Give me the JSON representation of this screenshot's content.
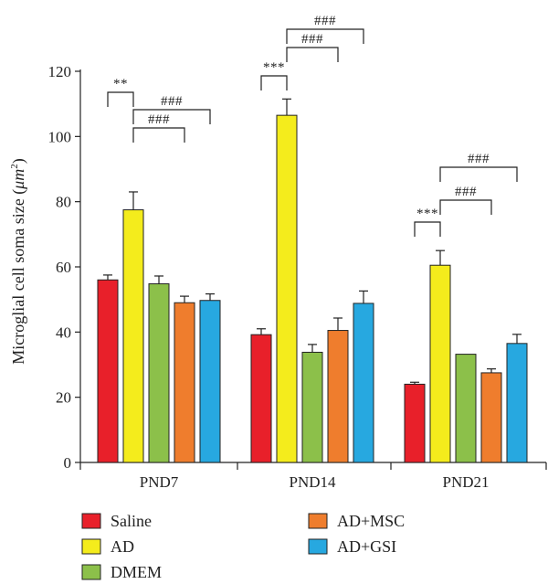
{
  "chart_data": {
    "type": "bar",
    "title": "",
    "xlabel": "",
    "ylabel": "Microglial cell soma size (",
    "ylabel_unit_mu": "μm",
    "ylabel_unit_exp": "2",
    "ylabel_close": ")",
    "ylim": [
      0,
      120
    ],
    "yticks": [
      "0",
      "20",
      "40",
      "60",
      "80",
      "100",
      "120"
    ],
    "categories": [
      "PND7",
      "PND14",
      "PND21"
    ],
    "series": [
      {
        "name": "Saline",
        "color": "#e8202a",
        "values": [
          56,
          39.2,
          24
        ],
        "errors": [
          1.5,
          1.8,
          0.6
        ]
      },
      {
        "name": "AD",
        "color": "#f4ec1c",
        "values": [
          77.5,
          106.5,
          60.5
        ],
        "errors": [
          5.5,
          5,
          4.5
        ]
      },
      {
        "name": "DMEM",
        "color": "#8cc04a",
        "values": [
          54.8,
          33.8,
          33.2
        ],
        "errors": [
          2.4,
          2.4,
          0
        ]
      },
      {
        "name": "AD+MSC",
        "color": "#ef7d2d",
        "values": [
          49,
          40.5,
          27.5
        ],
        "errors": [
          2,
          3.8,
          1.2
        ]
      },
      {
        "name": "AD+GSI",
        "color": "#27a8e0",
        "values": [
          49.7,
          48.8,
          36.5
        ],
        "errors": [
          2,
          3.8,
          2.8
        ]
      }
    ],
    "significance": [
      {
        "category": "PND7",
        "from": "Saline",
        "to": "AD",
        "label": "**"
      },
      {
        "category": "PND7",
        "from": "AD",
        "to": "AD+MSC",
        "label": "###"
      },
      {
        "category": "PND7",
        "from": "AD",
        "to": "AD+GSI",
        "label": "###"
      },
      {
        "category": "PND14",
        "from": "Saline",
        "to": "AD",
        "label": "***"
      },
      {
        "category": "PND14",
        "from": "AD",
        "to": "AD+MSC",
        "label": "###"
      },
      {
        "category": "PND14",
        "from": "AD",
        "to": "AD+GSI",
        "label": "###"
      },
      {
        "category": "PND21",
        "from": "Saline",
        "to": "AD",
        "label": "***"
      },
      {
        "category": "PND21",
        "from": "AD",
        "to": "AD+MSC",
        "label": "###"
      },
      {
        "category": "PND21",
        "from": "AD",
        "to": "AD+GSI",
        "label": "###"
      }
    ],
    "legend": {
      "placement": "bottom",
      "columns": 2
    },
    "grid": false
  }
}
